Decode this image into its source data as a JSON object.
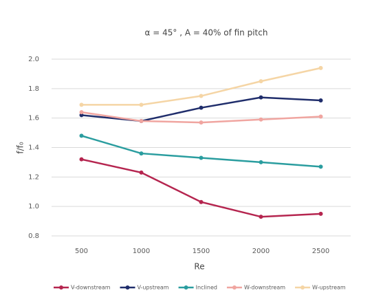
{
  "chart_data": {
    "type": "line",
    "title": "α = 45° , A = 40% of fin pitch",
    "x_label": "Re",
    "y_label": "f/f₀",
    "x": [
      500,
      1000,
      1500,
      2000,
      2500
    ],
    "xlim": [
      250,
      2750
    ],
    "xticks": [
      500,
      1000,
      1500,
      2000,
      2500
    ],
    "ylim": [
      0.8,
      2.0
    ],
    "yticks": [
      {
        "value": 0.8,
        "label": "0.8"
      },
      {
        "value": 1.0,
        "label": "1.0"
      },
      {
        "value": 1.2,
        "label": "1.2"
      },
      {
        "value": 1.4,
        "label": "1.4"
      },
      {
        "value": 1.6,
        "label": "1.6"
      },
      {
        "value": 1.8,
        "label": "1.8"
      },
      {
        "value": 2.0,
        "label": "2.0"
      }
    ],
    "grid": true,
    "legend": "bottom",
    "series": [
      {
        "name": "V-downstream",
        "color": "#b5254f",
        "values": [
          1.32,
          1.23,
          1.03,
          0.93,
          0.95
        ]
      },
      {
        "name": "V-upstream",
        "color": "#1f2d6b",
        "values": [
          1.62,
          1.58,
          1.67,
          1.74,
          1.72
        ]
      },
      {
        "name": "Inclined",
        "color": "#2a9d9f",
        "values": [
          1.48,
          1.36,
          1.33,
          1.3,
          1.27
        ]
      },
      {
        "name": "W-downstream",
        "color": "#f0a5a0",
        "values": [
          1.64,
          1.58,
          1.57,
          1.59,
          1.61
        ]
      },
      {
        "name": "W-upstream",
        "color": "#f5d5a5",
        "values": [
          1.69,
          1.69,
          1.75,
          1.85,
          1.94
        ]
      }
    ]
  }
}
